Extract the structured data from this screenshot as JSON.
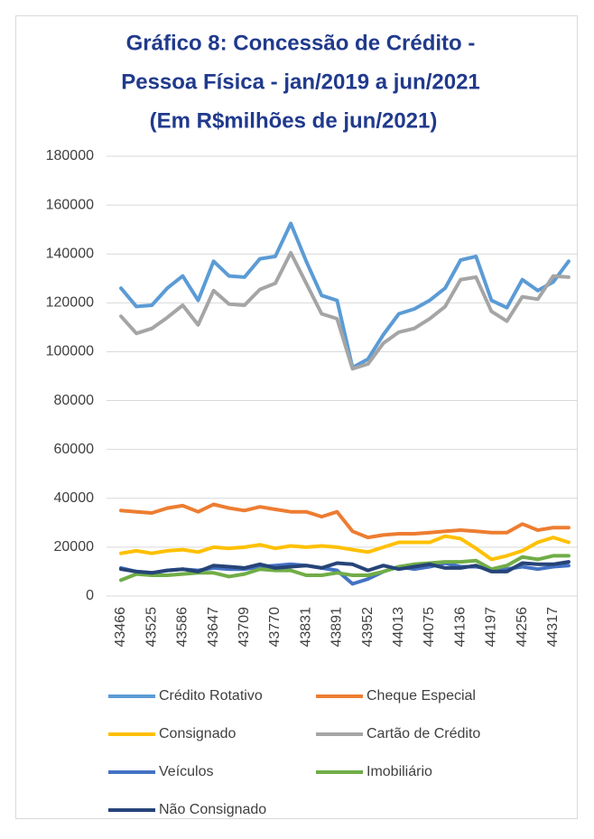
{
  "chart_data": {
    "type": "line",
    "title": [
      "Gráfico 8: Concessão de Crédito -",
      "Pessoa Física - jan/2019 a jun/2021",
      "(Em R$milhões de jun/2021)"
    ],
    "categories": [
      43466,
      null,
      43525,
      null,
      43586,
      null,
      43647,
      null,
      43709,
      null,
      43770,
      null,
      43831,
      null,
      43891,
      null,
      43952,
      null,
      44013,
      null,
      44075,
      null,
      44136,
      null,
      44197,
      null,
      44256,
      null,
      44317,
      null
    ],
    "series": [
      {
        "name": "Crédito Rotativo",
        "color": "#5b9bd5",
        "values": [
          126000,
          118500,
          119000,
          126000,
          131000,
          121000,
          137000,
          131000,
          130500,
          138000,
          139000,
          152500,
          137000,
          123000,
          121000,
          93500,
          97000,
          107000,
          115500,
          117500,
          121000,
          126000,
          137500,
          139000,
          121000,
          118000,
          129500,
          125000,
          128500,
          137000
        ]
      },
      {
        "name": "Cheque Especial",
        "color": "#ed7d31",
        "values": [
          35000,
          34500,
          34000,
          36000,
          37000,
          34500,
          37500,
          36000,
          35000,
          36500,
          35500,
          34500,
          34500,
          32500,
          34500,
          26500,
          24000,
          25000,
          25500,
          25500,
          26000,
          26500,
          27000,
          26500,
          26000,
          26000,
          29500,
          27000,
          28000,
          28000
        ]
      },
      {
        "name": "Consignado",
        "color": "#ffc000",
        "values": [
          17500,
          18500,
          17500,
          18500,
          19000,
          18000,
          20000,
          19500,
          20000,
          21000,
          19500,
          20500,
          20000,
          20500,
          20000,
          19000,
          18000,
          20000,
          22000,
          22000,
          22000,
          24500,
          23500,
          19500,
          15000,
          16500,
          18500,
          22000,
          24000,
          22000
        ]
      },
      {
        "name": "Cartão de Crédito",
        "color": "#a5a5a5",
        "values": [
          114500,
          107500,
          109500,
          114000,
          119000,
          111000,
          125000,
          119500,
          119000,
          125500,
          128000,
          140500,
          128000,
          115500,
          113500,
          93000,
          95000,
          103500,
          108000,
          109500,
          113500,
          118500,
          129500,
          130500,
          116500,
          112500,
          122500,
          121500,
          131000,
          130500
        ]
      },
      {
        "name": "Veículos",
        "color": "#4472c4",
        "values": [
          11500,
          10000,
          9500,
          10500,
          11000,
          10500,
          11500,
          11000,
          11000,
          12000,
          12500,
          13000,
          12500,
          11500,
          10500,
          5000,
          7000,
          10000,
          12000,
          11000,
          12000,
          13500,
          12000,
          12000,
          11000,
          11000,
          12000,
          11000,
          12000,
          12500
        ]
      },
      {
        "name": "Imobiliário",
        "color": "#70ad47",
        "values": [
          6500,
          9000,
          8500,
          8500,
          9000,
          9500,
          9500,
          8000,
          9000,
          11000,
          10500,
          10500,
          8500,
          8500,
          9500,
          8500,
          8500,
          10000,
          12000,
          13000,
          13500,
          14000,
          14000,
          14500,
          11000,
          12500,
          16000,
          15000,
          16500,
          16500
        ]
      },
      {
        "name": "Não Consignado",
        "color": "#264478",
        "values": [
          11000,
          10000,
          9500,
          10500,
          11000,
          10000,
          12500,
          12000,
          11500,
          13000,
          11500,
          12000,
          12500,
          11500,
          13500,
          13000,
          10500,
          12500,
          11000,
          12000,
          13000,
          11500,
          11500,
          12500,
          10000,
          10000,
          13500,
          13000,
          13000,
          14000
        ]
      }
    ],
    "ylim": [
      0,
      180000
    ],
    "yticks": [
      0,
      20000,
      40000,
      60000,
      80000,
      100000,
      120000,
      140000,
      160000,
      180000
    ],
    "grid": true
  }
}
